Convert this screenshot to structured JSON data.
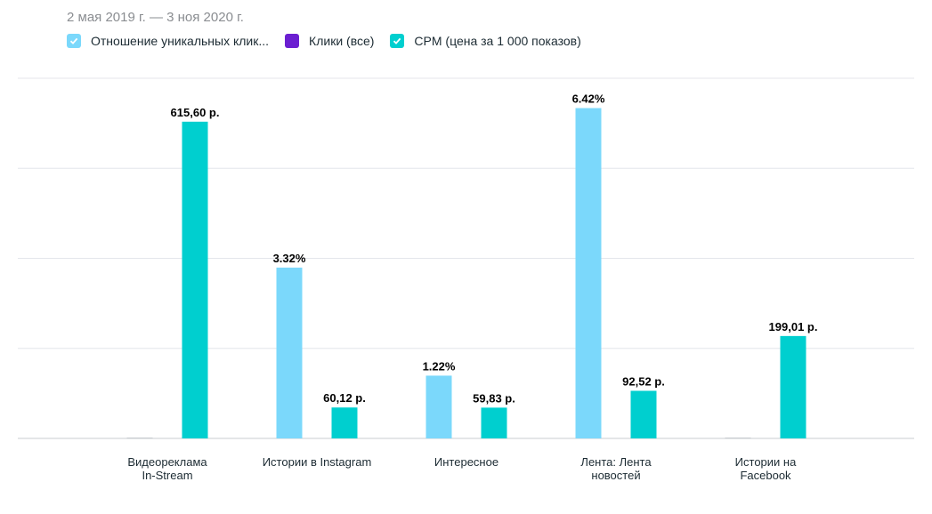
{
  "date_range": "2 мая 2019 г. — 3 ноя 2020 г.",
  "legend": [
    {
      "label": "Отношение уникальных клик...",
      "color": "#7bd8fb"
    },
    {
      "label": "Клики (все)",
      "color": "#6b1fd1"
    },
    {
      "label": "CPM (цена за 1 000 показов)",
      "color": "#00cfcf"
    }
  ],
  "chart_data": {
    "type": "bar",
    "categories": [
      [
        "Видеореклама",
        "In-Stream"
      ],
      [
        "Истории в Instagram"
      ],
      [
        "Интересное"
      ],
      [
        "Лента: Лента",
        "новостей"
      ],
      [
        "Истории на",
        "Facebook"
      ]
    ],
    "series": [
      {
        "name": "Отношение уникальных клик...",
        "color": "#7bd8fb",
        "values": [
          0,
          3.32,
          1.22,
          6.42,
          0
        ],
        "labels": [
          "",
          "3.32%",
          "1.22%",
          "6.42%",
          ""
        ],
        "ylim": [
          0,
          7
        ]
      },
      {
        "name": "Клики (все)",
        "color": "#6b1fd1",
        "values": [
          0,
          0,
          0,
          0,
          0
        ],
        "labels": [
          "",
          "",
          "",
          "",
          ""
        ]
      },
      {
        "name": "CPM (цена за 1 000 показов)",
        "color": "#00cfcf",
        "values": [
          615.6,
          60.12,
          59.83,
          92.52,
          199.01
        ],
        "labels": [
          "615,60 р.",
          "60,12 р.",
          "59,83 р.",
          "92,52 р.",
          "199,01 р."
        ],
        "ylim": [
          0,
          700
        ]
      }
    ],
    "grid": true
  }
}
